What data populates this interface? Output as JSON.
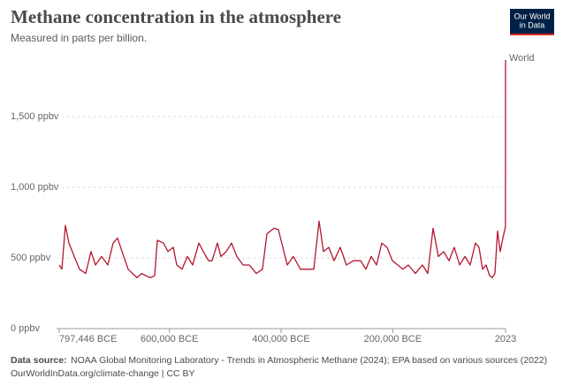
{
  "chart_data": {
    "type": "line",
    "title": "Methane concentration in the atmosphere",
    "subtitle": "Measured in parts per billion.",
    "logo": [
      "Our World",
      "in Data"
    ],
    "source_label": "Data source:",
    "source": "NOAA Global Monitoring Laboratory - Trends in Atmospheric Methane (2024); EPA based on various sources (2022)",
    "footer": "OurWorldInData.org/climate-change | CC BY",
    "x": [
      -797446,
      -792700,
      -786400,
      -780000,
      -770500,
      -761000,
      -750000,
      -740500,
      -732500,
      -721500,
      -710400,
      -700900,
      -693000,
      -681900,
      -674000,
      -666100,
      -658100,
      -650200,
      -642300,
      -634400,
      -626500,
      -621700,
      -610700,
      -602700,
      -593200,
      -586900,
      -577400,
      -567900,
      -558400,
      -547300,
      -539400,
      -529900,
      -523600,
      -514100,
      -507800,
      -498300,
      -488800,
      -479300,
      -468200,
      -457100,
      -444400,
      -433400,
      -425400,
      -412800,
      -404900,
      -396900,
      -389000,
      -378000,
      -365300,
      -352600,
      -341500,
      -332000,
      -324100,
      -314600,
      -305100,
      -294100,
      -283000,
      -270300,
      -257600,
      -248100,
      -238600,
      -229100,
      -219700,
      -210200,
      -200700,
      -191200,
      -181700,
      -172200,
      -159500,
      -146800,
      -137300,
      -127800,
      -118300,
      -108800,
      -99300,
      -89800,
      -80300,
      -70800,
      -61400,
      -51900,
      -45500,
      -39200,
      -32900,
      -26500,
      -21800,
      -17000,
      -12300,
      -7500,
      -2800,
      1750,
      1950,
      2023
    ],
    "series": [
      {
        "name": "World",
        "color": "#b5162e",
        "values": [
          450,
          420,
          730,
          605,
          510,
          420,
          390,
          545,
          450,
          510,
          450,
          605,
          640,
          510,
          420,
          390,
          360,
          390,
          375,
          360,
          375,
          625,
          605,
          545,
          575,
          450,
          420,
          510,
          450,
          605,
          545,
          480,
          480,
          605,
          510,
          545,
          605,
          510,
          450,
          450,
          390,
          420,
          670,
          710,
          700,
          575,
          450,
          510,
          420,
          420,
          420,
          760,
          545,
          575,
          480,
          575,
          450,
          480,
          480,
          420,
          510,
          450,
          605,
          575,
          480,
          450,
          420,
          450,
          390,
          450,
          390,
          710,
          510,
          545,
          480,
          575,
          450,
          510,
          450,
          605,
          575,
          420,
          450,
          375,
          360,
          390,
          690,
          545,
          640,
          720,
          1150,
          1900
        ]
      }
    ],
    "xlim": [
      -797446,
      2023
    ],
    "xticks": [
      {
        "value": -797446,
        "label": "797,446 BCE"
      },
      {
        "value": -600000,
        "label": "600,000 BCE"
      },
      {
        "value": -400000,
        "label": "400,000 BCE"
      },
      {
        "value": -200000,
        "label": "200,000 BCE"
      },
      2023
    ],
    "ylim": [
      0,
      1950
    ],
    "yticks": [
      {
        "value": 0,
        "label": "0 ppbv"
      },
      {
        "value": 500,
        "label": "500 ppbv"
      },
      {
        "value": 1000,
        "label": "1,000 ppbv"
      },
      {
        "value": 1500,
        "label": "1,500 ppbv"
      }
    ],
    "grid": true
  }
}
